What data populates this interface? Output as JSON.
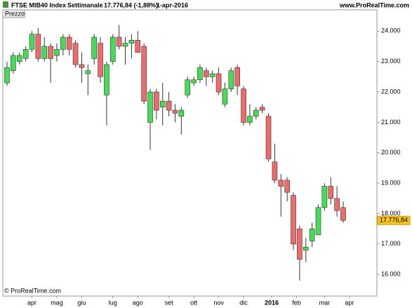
{
  "chart_data": {
    "type": "candlestick",
    "title": "FTSE MIB40 Index",
    "period": "Settimanale",
    "quote": "17.776,84 (-1,88%)",
    "date": "1-apr-2016",
    "source": "www.ProRealTime.com",
    "panel_label": "Prezzo",
    "copyright": "© ProRealTime.com",
    "x_labels": [
      "apr",
      "mag",
      "giu",
      "lug",
      "ago",
      "set",
      "ott",
      "nov",
      "dic",
      "2016",
      "feb",
      "mar",
      "apr"
    ],
    "open": [
      22300,
      22700,
      23000,
      23100,
      23400,
      23900,
      23100,
      23500,
      23200,
      23400,
      23800,
      23600,
      22900,
      22600,
      23100,
      23600,
      21900,
      23000,
      23800,
      23500,
      23600,
      23700,
      23500,
      21000,
      22000,
      21500,
      21700,
      21400,
      21200,
      21900,
      22300,
      22400,
      22700,
      22500,
      22600,
      21600,
      22100,
      22800,
      22100,
      21000,
      21200,
      21500,
      21200,
      19700,
      19100,
      19100,
      18600,
      17500,
      16800,
      17100,
      17300,
      18200,
      18900,
      18500,
      18200
    ],
    "high": [
      23000,
      23300,
      23300,
      23500,
      24000,
      24100,
      23800,
      23600,
      23600,
      23900,
      23900,
      23700,
      23300,
      22900,
      23900,
      23800,
      23000,
      23900,
      24200,
      23800,
      23900,
      24000,
      23600,
      22100,
      22100,
      22300,
      22000,
      21600,
      21500,
      22500,
      22500,
      22900,
      22800,
      22700,
      22800,
      22300,
      22800,
      22900,
      22200,
      21600,
      21500,
      21600,
      21300,
      20300,
      19300,
      19200,
      18700,
      17600,
      17200,
      17700,
      18300,
      19000,
      19200,
      18900,
      18400
    ],
    "low": [
      22200,
      22600,
      22900,
      23000,
      23300,
      23000,
      23000,
      22300,
      23000,
      23200,
      23200,
      22800,
      22300,
      21900,
      22900,
      22300,
      20900,
      22900,
      23400,
      22900,
      23100,
      23300,
      21600,
      20100,
      21100,
      20900,
      21200,
      21000,
      20600,
      21800,
      22200,
      22300,
      22200,
      22300,
      21900,
      21500,
      22000,
      21900,
      20900,
      20900,
      21100,
      21300,
      19700,
      19000,
      17900,
      18400,
      16800,
      15800,
      16400,
      16900,
      17300,
      18100,
      18300,
      17900,
      17700
    ],
    "close": [
      22800,
      23200,
      23200,
      23400,
      23900,
      23100,
      23500,
      23100,
      23400,
      23800,
      23400,
      22900,
      22800,
      22700,
      23800,
      22500,
      22900,
      23800,
      23500,
      23600,
      23700,
      23300,
      21700,
      22000,
      21400,
      21700,
      21400,
      21300,
      21400,
      22400,
      22400,
      22800,
      22500,
      22600,
      22000,
      22100,
      22700,
      22200,
      21000,
      21200,
      21400,
      21400,
      19800,
      19100,
      18900,
      18700,
      17000,
      16500,
      16900,
      17500,
      18200,
      18900,
      18500,
      18100,
      17776.84
    ],
    "last_label": "17.776,84",
    "up_color": "#44dd55",
    "down_color": "#ee6b6b",
    "ylim": [
      15290,
      24700
    ],
    "yticks": [
      {
        "value": 16000,
        "label": "16.000"
      },
      {
        "value": 17000,
        "label": "17.000"
      },
      {
        "value": 18000,
        "label": "18.000"
      },
      {
        "value": 19000,
        "label": "19.000"
      },
      {
        "value": 20000,
        "label": "20.000"
      },
      {
        "value": 21000,
        "label": "21.000"
      },
      {
        "value": 22000,
        "label": "22.000"
      },
      {
        "value": 23000,
        "label": "23.000"
      },
      {
        "value": 24000,
        "label": "24.000"
      }
    ]
  }
}
